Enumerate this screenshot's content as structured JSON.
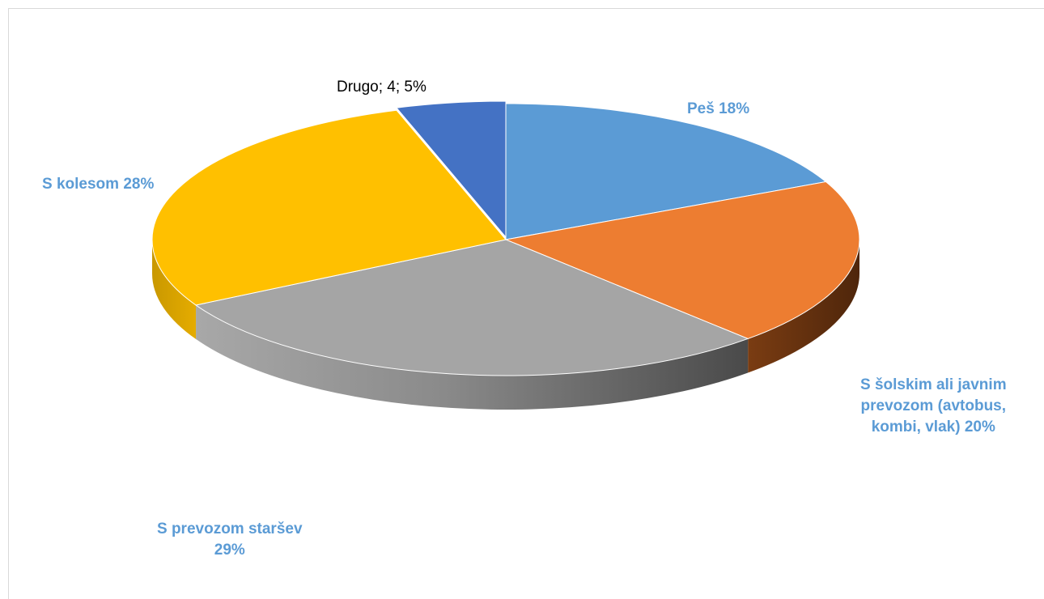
{
  "chart_data": {
    "type": "pie",
    "style": "3d",
    "title": "",
    "series": [
      {
        "values": [
          {
            "label": "Peš 18%",
            "percent": 18,
            "color": "#5b9bd5"
          },
          {
            "label": "S šolskim ali javnim\nprevozom (avtobus,\nkombi, vlak) 20%",
            "percent": 20,
            "color": "#ed7d31"
          },
          {
            "label": "S prevozom staršev\n29%",
            "percent": 29,
            "color": "#a5a5a5"
          },
          {
            "label": "S kolesom 28%",
            "percent": 28,
            "color": "#ffc000"
          },
          {
            "label": "Drugo; 4; 5%",
            "value": 4,
            "percent": 5,
            "color": "#4472c4"
          }
        ]
      }
    ],
    "label_color": "#5b9bd5",
    "other_label_color": "#000000"
  }
}
